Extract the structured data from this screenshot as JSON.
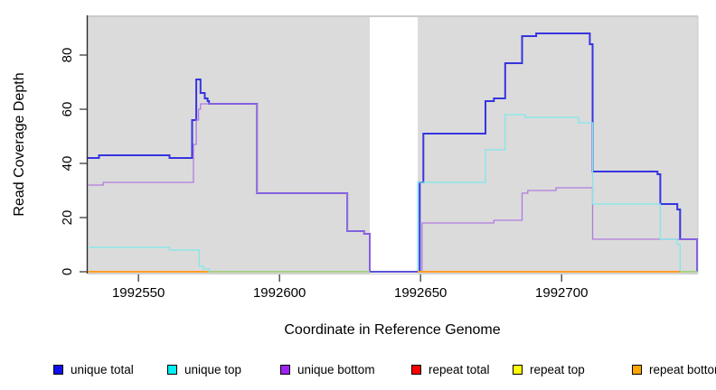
{
  "chart_data": {
    "type": "line",
    "subtype": "step",
    "title": "",
    "xlabel": "Coordinate in Reference Genome",
    "ylabel": "Read Coverage Depth",
    "xlim": [
      1992532,
      1992748
    ],
    "ylim": [
      0,
      94
    ],
    "x_ticks": [
      1992550,
      1992600,
      1992650,
      1992700
    ],
    "y_ticks": [
      0,
      20,
      40,
      60,
      80
    ],
    "grid": false,
    "plot_bg": "#DBDBDB",
    "gap_region": {
      "from": 1992632,
      "to": 1992649,
      "color": "#FFFFFF"
    },
    "legend_position": "bottom",
    "legend": [
      {
        "label": "unique total",
        "color": "#1010EE"
      },
      {
        "label": "unique top",
        "color": "#00EFEF"
      },
      {
        "label": "unique bottom",
        "color": "#A020F0"
      },
      {
        "label": "repeat total",
        "color": "#FF0000"
      },
      {
        "label": "repeat top",
        "color": "#FFFF00"
      },
      {
        "label": "repeat bottom",
        "color": "#FFA500"
      }
    ],
    "series": [
      {
        "name": "unique total",
        "line_color": "#3634DF",
        "line_width": 2,
        "points": [
          [
            1992532,
            42
          ],
          [
            1992536,
            43
          ],
          [
            1992561,
            42
          ],
          [
            1992569,
            56
          ],
          [
            1992570.5,
            71
          ],
          [
            1992572,
            66
          ],
          [
            1992573.5,
            64
          ],
          [
            1992574.5,
            63
          ],
          [
            1992575,
            62
          ],
          [
            1992592,
            29
          ],
          [
            1992624,
            15
          ],
          [
            1992630,
            14
          ],
          [
            1992632,
            0
          ],
          [
            1992649.7,
            33
          ],
          [
            1992651,
            51
          ],
          [
            1992673,
            63
          ],
          [
            1992676,
            64
          ],
          [
            1992680,
            77
          ],
          [
            1992686,
            87
          ],
          [
            1992691,
            88
          ],
          [
            1992710,
            84
          ],
          [
            1992711,
            37
          ],
          [
            1992734,
            36
          ],
          [
            1992735,
            25
          ],
          [
            1992741,
            23
          ],
          [
            1992742,
            12
          ],
          [
            1992748,
            0
          ]
        ]
      },
      {
        "name": "unique top",
        "line_color": "#80E8EA",
        "line_width": 1.3,
        "points": [
          [
            1992532,
            9
          ],
          [
            1992561,
            8
          ],
          [
            1992571.5,
            2
          ],
          [
            1992573,
            1
          ],
          [
            1992575,
            0
          ],
          [
            1992649,
            33
          ],
          [
            1992673,
            45
          ],
          [
            1992680,
            58
          ],
          [
            1992687,
            57
          ],
          [
            1992706,
            55
          ],
          [
            1992711,
            25
          ],
          [
            1992735,
            12
          ],
          [
            1992741,
            10
          ],
          [
            1992742,
            0
          ],
          [
            1992748,
            0
          ]
        ]
      },
      {
        "name": "unique bottom",
        "line_color": "#B07CDE",
        "line_width": 1.3,
        "points": [
          [
            1992532,
            32
          ],
          [
            1992537.5,
            33
          ],
          [
            1992569.5,
            47
          ],
          [
            1992570.5,
            56
          ],
          [
            1992571.3,
            60
          ],
          [
            1992572,
            62
          ],
          [
            1992592,
            29
          ],
          [
            1992624,
            15
          ],
          [
            1992630,
            14
          ],
          [
            1992632,
            0
          ],
          [
            1992650.5,
            18
          ],
          [
            1992676,
            19
          ],
          [
            1992686,
            29
          ],
          [
            1992688,
            30
          ],
          [
            1992698,
            31
          ],
          [
            1992711,
            12
          ],
          [
            1992748,
            0
          ]
        ]
      },
      {
        "name": "repeat total",
        "line_color": "#FF0000",
        "line_width": 1,
        "points": [
          [
            1992532,
            0
          ],
          [
            1992748,
            0
          ]
        ]
      },
      {
        "name": "repeat top",
        "line_color": "#FFFF00",
        "line_width": 1,
        "points": [
          [
            1992532,
            0
          ],
          [
            1992748,
            0
          ]
        ]
      },
      {
        "name": "repeat bottom",
        "line_color": "#FF9D26",
        "line_width": 2,
        "points": [
          [
            1992532,
            0
          ],
          [
            1992748,
            0
          ]
        ]
      }
    ],
    "baseline_segments": [
      {
        "from": 1992532,
        "to": 1992574.6,
        "color": "#FF9D26",
        "width": 2
      },
      {
        "from": 1992574.6,
        "to": 1992632,
        "color": "#97DB97",
        "width": 1.5
      },
      {
        "from": 1992632,
        "to": 1992649,
        "color": "#5A50D8",
        "width": 2
      },
      {
        "from": 1992649,
        "to": 1992742,
        "color": "#FF9D26",
        "width": 2
      },
      {
        "from": 1992742,
        "to": 1992748,
        "color": "#97DB97",
        "width": 1.5
      }
    ]
  }
}
